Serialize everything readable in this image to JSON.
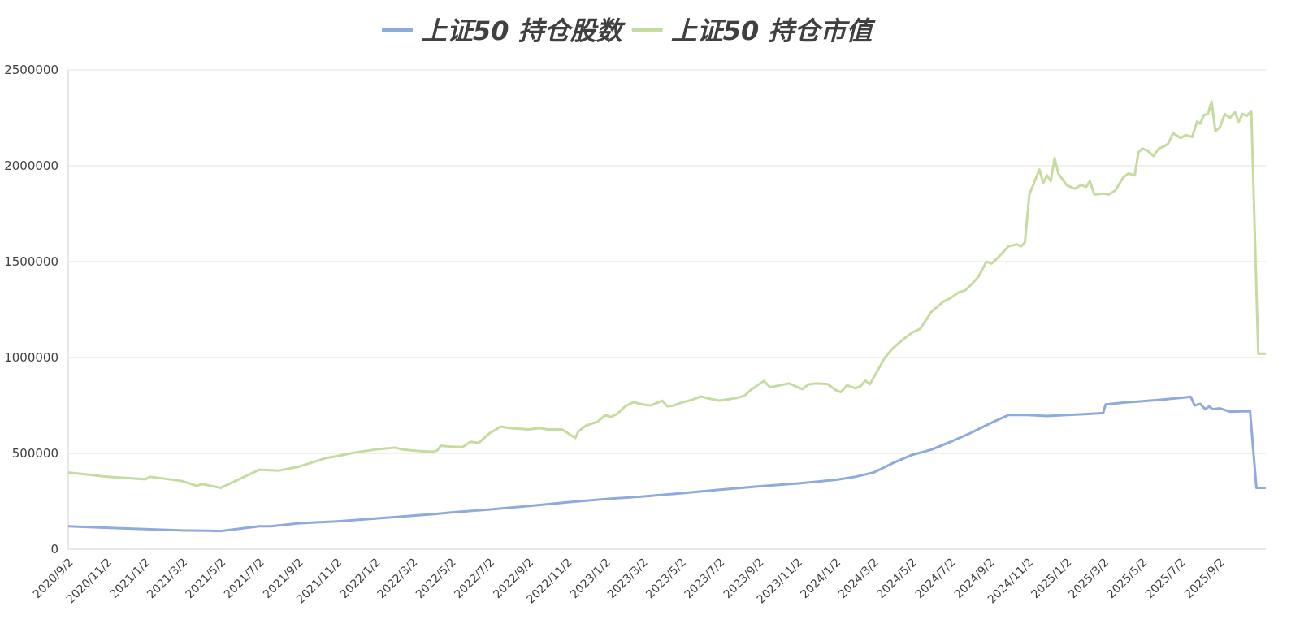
{
  "chart_data": {
    "type": "line",
    "title": "",
    "xlabel": "",
    "ylabel": "",
    "ylim": [
      0,
      2500000
    ],
    "yticks": [
      0,
      500000,
      1000000,
      1500000,
      2000000,
      2500000
    ],
    "ytick_labels": [
      "0",
      "500000",
      "1000000",
      "1500000",
      "2000000",
      "2500000"
    ],
    "xlim": [
      "2020-09-02",
      "2025-11-14"
    ],
    "xtick_labels": [
      "2020/9/2",
      "2020/11/2",
      "2021/1/2",
      "2021/3/2",
      "2021/5/2",
      "2021/7/2",
      "2021/9/2",
      "2021/11/2",
      "2022/1/2",
      "2022/3/2",
      "2022/5/2",
      "2022/7/2",
      "2022/9/2",
      "2022/11/2",
      "2023/1/2",
      "2023/3/2",
      "2023/5/2",
      "2023/7/2",
      "2023/9/2",
      "2023/11/2",
      "2024/1/2",
      "2024/3/2",
      "2024/5/2",
      "2024/7/2",
      "2024/9/2",
      "2024/11/2",
      "2025/1/2",
      "2025/3/2",
      "2025/5/2",
      "2025/7/2",
      "2025/9/2"
    ],
    "xtick_dates": [
      "2020-09-02",
      "2020-11-02",
      "2021-01-02",
      "2021-03-02",
      "2021-05-02",
      "2021-07-02",
      "2021-09-02",
      "2021-11-02",
      "2022-01-02",
      "2022-03-02",
      "2022-05-02",
      "2022-07-02",
      "2022-09-02",
      "2022-11-02",
      "2023-01-02",
      "2023-03-02",
      "2023-05-02",
      "2023-07-02",
      "2023-09-02",
      "2023-11-02",
      "2024-01-02",
      "2024-03-02",
      "2024-05-02",
      "2024-07-02",
      "2024-09-02",
      "2024-11-02",
      "2025-01-02",
      "2025-03-02",
      "2025-05-02",
      "2025-07-02",
      "2025-09-02"
    ],
    "grid": true,
    "legend_position": "top-center",
    "series": [
      {
        "name": "上证50 持仓股数",
        "color": "#8faadc",
        "points": [
          [
            "2020-09-02",
            120000
          ],
          [
            "2020-11-02",
            112000
          ],
          [
            "2021-01-02",
            105000
          ],
          [
            "2021-03-02",
            98000
          ],
          [
            "2021-04-10",
            96000
          ],
          [
            "2021-05-02",
            95000
          ],
          [
            "2021-07-02",
            120000
          ],
          [
            "2021-07-20",
            120000
          ],
          [
            "2021-09-02",
            135000
          ],
          [
            "2021-11-02",
            145000
          ],
          [
            "2022-01-02",
            160000
          ],
          [
            "2022-03-02",
            175000
          ],
          [
            "2022-04-02",
            182000
          ],
          [
            "2022-05-02",
            192000
          ],
          [
            "2022-07-02",
            207000
          ],
          [
            "2022-09-02",
            225000
          ],
          [
            "2022-11-02",
            245000
          ],
          [
            "2023-01-02",
            262000
          ],
          [
            "2023-03-02",
            275000
          ],
          [
            "2023-05-02",
            292000
          ],
          [
            "2023-07-02",
            310000
          ],
          [
            "2023-09-02",
            328000
          ],
          [
            "2023-11-02",
            343000
          ],
          [
            "2024-01-02",
            362000
          ],
          [
            "2024-02-02",
            378000
          ],
          [
            "2024-03-02",
            400000
          ],
          [
            "2024-04-02",
            450000
          ],
          [
            "2024-05-02",
            492000
          ],
          [
            "2024-06-02",
            520000
          ],
          [
            "2024-07-02",
            560000
          ],
          [
            "2024-08-02",
            605000
          ],
          [
            "2024-09-02",
            655000
          ],
          [
            "2024-10-02",
            700000
          ],
          [
            "2024-11-02",
            700000
          ],
          [
            "2024-12-02",
            695000
          ],
          [
            "2025-01-02",
            700000
          ],
          [
            "2025-02-02",
            705000
          ],
          [
            "2025-03-01",
            710000
          ],
          [
            "2025-03-05",
            755000
          ],
          [
            "2025-04-02",
            765000
          ],
          [
            "2025-05-02",
            772000
          ],
          [
            "2025-06-02",
            780000
          ],
          [
            "2025-07-02",
            790000
          ],
          [
            "2025-07-18",
            795000
          ],
          [
            "2025-07-24",
            750000
          ],
          [
            "2025-08-02",
            758000
          ],
          [
            "2025-08-10",
            730000
          ],
          [
            "2025-08-16",
            745000
          ],
          [
            "2025-08-22",
            730000
          ],
          [
            "2025-09-02",
            735000
          ],
          [
            "2025-09-18",
            718000
          ],
          [
            "2025-10-20",
            720000
          ],
          [
            "2025-10-30",
            320000
          ],
          [
            "2025-11-14",
            320000
          ]
        ]
      },
      {
        "name": "上证50 持仓市值",
        "color": "#c5dba0",
        "points": [
          [
            "2020-09-02",
            400000
          ],
          [
            "2020-10-02",
            390000
          ],
          [
            "2020-11-02",
            378000
          ],
          [
            "2020-12-02",
            372000
          ],
          [
            "2021-01-02",
            365000
          ],
          [
            "2021-01-10",
            378000
          ],
          [
            "2021-02-02",
            368000
          ],
          [
            "2021-03-02",
            355000
          ],
          [
            "2021-03-25",
            330000
          ],
          [
            "2021-04-02",
            340000
          ],
          [
            "2021-05-02",
            320000
          ],
          [
            "2021-07-02",
            415000
          ],
          [
            "2021-08-02",
            410000
          ],
          [
            "2021-09-02",
            430000
          ],
          [
            "2021-10-15",
            475000
          ],
          [
            "2021-11-02",
            485000
          ],
          [
            "2021-12-02",
            505000
          ],
          [
            "2022-01-02",
            520000
          ],
          [
            "2022-02-02",
            530000
          ],
          [
            "2022-02-15",
            520000
          ],
          [
            "2022-03-02",
            515000
          ],
          [
            "2022-04-02",
            508000
          ],
          [
            "2022-04-10",
            515000
          ],
          [
            "2022-04-16",
            540000
          ],
          [
            "2022-05-02",
            535000
          ],
          [
            "2022-05-20",
            532000
          ],
          [
            "2022-06-02",
            560000
          ],
          [
            "2022-06-15",
            555000
          ],
          [
            "2022-07-02",
            605000
          ],
          [
            "2022-07-20",
            640000
          ],
          [
            "2022-08-02",
            632000
          ],
          [
            "2022-09-02",
            625000
          ],
          [
            "2022-09-20",
            632000
          ],
          [
            "2022-10-02",
            625000
          ],
          [
            "2022-10-25",
            625000
          ],
          [
            "2022-11-15",
            580000
          ],
          [
            "2022-11-20",
            615000
          ],
          [
            "2022-12-02",
            645000
          ],
          [
            "2022-12-20",
            665000
          ],
          [
            "2023-01-02",
            700000
          ],
          [
            "2023-01-10",
            690000
          ],
          [
            "2023-01-20",
            705000
          ],
          [
            "2023-02-02",
            745000
          ],
          [
            "2023-02-15",
            768000
          ],
          [
            "2023-03-02",
            755000
          ],
          [
            "2023-03-15",
            750000
          ],
          [
            "2023-04-02",
            775000
          ],
          [
            "2023-04-10",
            745000
          ],
          [
            "2023-04-20",
            750000
          ],
          [
            "2023-05-02",
            765000
          ],
          [
            "2023-05-20",
            780000
          ],
          [
            "2023-06-02",
            797000
          ],
          [
            "2023-06-20",
            782000
          ],
          [
            "2023-07-02",
            775000
          ],
          [
            "2023-07-30",
            790000
          ],
          [
            "2023-08-10",
            800000
          ],
          [
            "2023-08-20",
            830000
          ],
          [
            "2023-09-10",
            878000
          ],
          [
            "2023-09-20",
            845000
          ],
          [
            "2023-10-20",
            865000
          ],
          [
            "2023-11-10",
            835000
          ],
          [
            "2023-11-20",
            860000
          ],
          [
            "2023-12-02",
            865000
          ],
          [
            "2023-12-20",
            862000
          ],
          [
            "2024-01-02",
            830000
          ],
          [
            "2024-01-10",
            820000
          ],
          [
            "2024-01-20",
            855000
          ],
          [
            "2024-02-02",
            840000
          ],
          [
            "2024-02-10",
            850000
          ],
          [
            "2024-02-18",
            880000
          ],
          [
            "2024-02-25",
            860000
          ],
          [
            "2024-03-02",
            895000
          ],
          [
            "2024-03-20",
            1000000
          ],
          [
            "2024-04-02",
            1050000
          ],
          [
            "2024-04-20",
            1100000
          ],
          [
            "2024-05-02",
            1130000
          ],
          [
            "2024-05-15",
            1150000
          ],
          [
            "2024-06-02",
            1240000
          ],
          [
            "2024-06-20",
            1290000
          ],
          [
            "2024-07-02",
            1310000
          ],
          [
            "2024-07-15",
            1340000
          ],
          [
            "2024-07-25",
            1350000
          ],
          [
            "2024-08-02",
            1375000
          ],
          [
            "2024-08-15",
            1420000
          ],
          [
            "2024-08-28",
            1500000
          ],
          [
            "2024-09-05",
            1490000
          ],
          [
            "2024-09-15",
            1520000
          ],
          [
            "2024-10-02",
            1580000
          ],
          [
            "2024-10-15",
            1590000
          ],
          [
            "2024-10-22",
            1580000
          ],
          [
            "2024-10-28",
            1600000
          ],
          [
            "2024-11-04",
            1850000
          ],
          [
            "2024-11-20",
            1980000
          ],
          [
            "2024-11-26",
            1910000
          ],
          [
            "2024-12-02",
            1950000
          ],
          [
            "2024-12-08",
            1920000
          ],
          [
            "2024-12-14",
            2040000
          ],
          [
            "2024-12-20",
            1960000
          ],
          [
            "2025-01-02",
            1900000
          ],
          [
            "2025-01-15",
            1880000
          ],
          [
            "2025-01-25",
            1900000
          ],
          [
            "2025-02-02",
            1890000
          ],
          [
            "2025-02-08",
            1920000
          ],
          [
            "2025-02-15",
            1850000
          ],
          [
            "2025-03-02",
            1855000
          ],
          [
            "2025-03-10",
            1850000
          ],
          [
            "2025-03-20",
            1870000
          ],
          [
            "2025-04-02",
            1940000
          ],
          [
            "2025-04-10",
            1960000
          ],
          [
            "2025-04-20",
            1950000
          ],
          [
            "2025-04-26",
            2070000
          ],
          [
            "2025-05-02",
            2090000
          ],
          [
            "2025-05-10",
            2080000
          ],
          [
            "2025-05-20",
            2050000
          ],
          [
            "2025-05-28",
            2090000
          ],
          [
            "2025-06-05",
            2100000
          ],
          [
            "2025-06-12",
            2115000
          ],
          [
            "2025-06-20",
            2170000
          ],
          [
            "2025-07-02",
            2145000
          ],
          [
            "2025-07-10",
            2160000
          ],
          [
            "2025-07-20",
            2150000
          ],
          [
            "2025-07-28",
            2230000
          ],
          [
            "2025-08-02",
            2220000
          ],
          [
            "2025-08-08",
            2265000
          ],
          [
            "2025-08-14",
            2270000
          ],
          [
            "2025-08-20",
            2335000
          ],
          [
            "2025-08-26",
            2180000
          ],
          [
            "2025-09-02",
            2200000
          ],
          [
            "2025-09-10",
            2270000
          ],
          [
            "2025-09-18",
            2250000
          ],
          [
            "2025-09-26",
            2280000
          ],
          [
            "2025-10-02",
            2230000
          ],
          [
            "2025-10-08",
            2270000
          ],
          [
            "2025-10-15",
            2260000
          ],
          [
            "2025-10-22",
            2285000
          ],
          [
            "2025-11-02",
            1020000
          ],
          [
            "2025-11-14",
            1020000
          ]
        ]
      }
    ]
  }
}
